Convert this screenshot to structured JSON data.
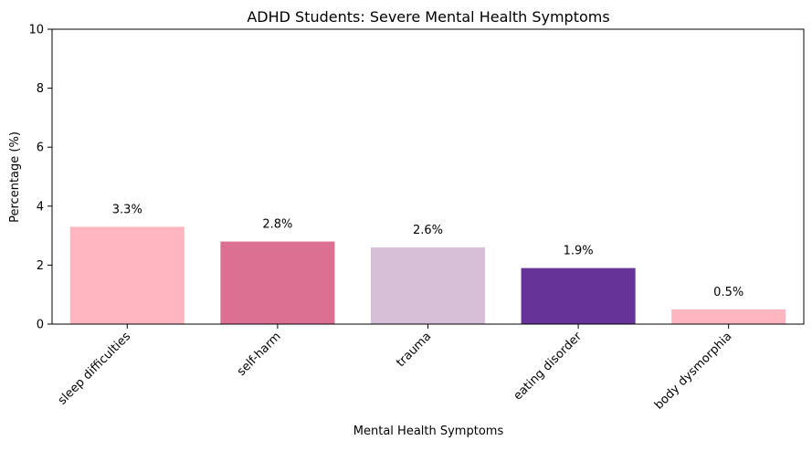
{
  "chart_data": {
    "type": "bar",
    "title": "ADHD Students: Severe Mental Health Symptoms",
    "xlabel": "Mental Health Symptoms",
    "ylabel": "Percentage (%)",
    "ylim": [
      0,
      10
    ],
    "yticks": [
      0,
      2,
      4,
      6,
      8,
      10
    ],
    "grid": false,
    "categories": [
      "sleep difficulties",
      "self-harm",
      "trauma",
      "eating disorder",
      "body dysmorphia"
    ],
    "values": [
      3.3,
      2.8,
      2.6,
      1.9,
      0.5
    ],
    "data_labels": [
      "3.3%",
      "2.8%",
      "2.6%",
      "1.9%",
      "0.5%"
    ],
    "colors": [
      "#ffb6c1",
      "#db7093",
      "#d8bfd8",
      "#663399",
      "#ffb6c1"
    ]
  }
}
